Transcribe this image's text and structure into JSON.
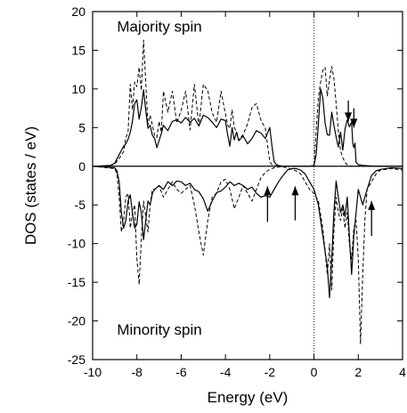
{
  "chart_data": {
    "type": "line",
    "xlabel": "Energy (eV)",
    "ylabel": "DOS (states / eV)",
    "xlim": [
      -10,
      4
    ],
    "ylim": [
      -25,
      20
    ],
    "xticks": [
      -10,
      -8,
      -6,
      -4,
      -2,
      0,
      2,
      4
    ],
    "yticks": [
      -25,
      -20,
      -15,
      -10,
      -5,
      0,
      5,
      10,
      15,
      20
    ],
    "grid": false,
    "legend": "none",
    "annotations": [
      {
        "text": "Majority spin",
        "x": -8.9,
        "y": 17.4
      },
      {
        "text": "Minority spin",
        "x": -8.9,
        "y": -21.8
      }
    ],
    "fermi_level": 0,
    "arrows": [
      {
        "direction": "down",
        "x": 1.55,
        "y_from": 8.5,
        "y_to": 5.8
      },
      {
        "direction": "down",
        "x": 1.8,
        "y_from": 7.5,
        "y_to": 5.0
      },
      {
        "direction": "up",
        "x": -2.1,
        "y_from": -7.2,
        "y_to": -2.6
      },
      {
        "direction": "up",
        "x": -0.85,
        "y_from": -7.0,
        "y_to": -2.6
      },
      {
        "direction": "up",
        "x": 2.6,
        "y_from": -9.0,
        "y_to": -4.5
      }
    ],
    "series": [
      {
        "style": "solid",
        "x": [
          -10,
          -9.2,
          -9.0,
          -8.8,
          -8.6,
          -8.5,
          -8.4,
          -8.3,
          -8.2,
          -8.1,
          -8.0,
          -7.9,
          -7.8,
          -7.7,
          -7.6,
          -7.5,
          -7.4,
          -7.3,
          -7.2,
          -7.1,
          -7.0,
          -6.9,
          -6.8,
          -6.6,
          -6.4,
          -6.2,
          -6.0,
          -5.8,
          -5.6,
          -5.4,
          -5.2,
          -5.0,
          -4.8,
          -4.6,
          -4.4,
          -4.2,
          -4.0,
          -3.9,
          -3.8,
          -3.7,
          -3.6,
          -3.5,
          -3.4,
          -3.2,
          -3.0,
          -2.8,
          -2.6,
          -2.4,
          -2.2,
          -2.0,
          -1.9,
          -1.8,
          -1.7,
          -1.6,
          -1.4,
          -1.2,
          -1.0,
          -0.8,
          -0.6,
          -0.4,
          -0.2,
          0.0,
          0.1,
          0.2,
          0.3,
          0.4,
          0.5,
          0.6,
          0.7,
          0.8,
          0.9,
          1.0,
          1.1,
          1.2,
          1.3,
          1.4,
          1.5,
          1.6,
          1.7,
          1.75,
          1.8,
          1.85,
          1.9,
          2.0,
          2.2,
          2.5,
          3.0,
          3.5,
          4.0
        ],
        "y": [
          0,
          0.1,
          0.4,
          1.5,
          2.6,
          2.9,
          3.5,
          4.4,
          5.8,
          8.1,
          8.6,
          6.1,
          7.6,
          9.9,
          7.2,
          4.9,
          5.3,
          4.0,
          3.6,
          2.4,
          3.3,
          4.2,
          5.3,
          4.6,
          5.8,
          6.0,
          5.6,
          6.3,
          5.7,
          6.2,
          5.2,
          6.6,
          6.3,
          5.7,
          5.0,
          6.1,
          5.9,
          4.1,
          2.6,
          5.0,
          3.4,
          4.4,
          3.3,
          3.9,
          2.9,
          3.6,
          4.6,
          4.3,
          3.6,
          5.0,
          2.7,
          0.6,
          0.2,
          0.1,
          0,
          0,
          0,
          0,
          0,
          0,
          0,
          0.1,
          1.6,
          5.5,
          10.0,
          8.8,
          5.6,
          4.1,
          4.0,
          7.0,
          5.3,
          3.8,
          2.5,
          4.4,
          2.1,
          4.8,
          6.0,
          5.1,
          5.7,
          3.0,
          2.4,
          3.0,
          0.5,
          0.2,
          0.1,
          0.05,
          0,
          0,
          0
        ]
      },
      {
        "style": "dashed",
        "x": [
          -10,
          -9.2,
          -9.0,
          -8.8,
          -8.6,
          -8.5,
          -8.4,
          -8.3,
          -8.2,
          -8.1,
          -8.0,
          -7.9,
          -7.8,
          -7.7,
          -7.6,
          -7.5,
          -7.4,
          -7.3,
          -7.2,
          -7.1,
          -7.0,
          -6.9,
          -6.8,
          -6.6,
          -6.4,
          -6.2,
          -6.0,
          -5.8,
          -5.6,
          -5.4,
          -5.2,
          -5.0,
          -4.8,
          -4.6,
          -4.4,
          -4.2,
          -4.0,
          -3.9,
          -3.8,
          -3.7,
          -3.6,
          -3.5,
          -3.4,
          -3.2,
          -3.0,
          -2.8,
          -2.6,
          -2.4,
          -2.2,
          -2.0,
          -1.9,
          -1.8,
          -1.7,
          -1.6,
          -1.4,
          -1.2,
          -1.0,
          -0.8,
          -0.6,
          -0.4,
          -0.2,
          0.0,
          0.1,
          0.2,
          0.3,
          0.4,
          0.5,
          0.6,
          0.7,
          0.8,
          0.9,
          1.0,
          1.1,
          1.2,
          1.3,
          1.4,
          1.5,
          1.6,
          1.7,
          1.75,
          1.8,
          1.85,
          1.9,
          2.0,
          2.2,
          2.5,
          3.0,
          3.5,
          4.0
        ],
        "y": [
          0,
          0.1,
          0.3,
          1.0,
          1.9,
          3.7,
          4.4,
          10.6,
          7.3,
          10.9,
          10.3,
          12.8,
          9.8,
          16.3,
          10.8,
          5.3,
          6.6,
          5.3,
          4.0,
          3.7,
          5.8,
          4.4,
          9.7,
          7.0,
          9.7,
          5.6,
          7.2,
          9.7,
          4.7,
          10.6,
          5.2,
          10.6,
          9.8,
          6.9,
          5.7,
          9.7,
          6.8,
          5.3,
          4.9,
          7.3,
          5.0,
          4.5,
          3.4,
          4.1,
          5.5,
          7.6,
          8.1,
          6.0,
          4.9,
          0.6,
          0.2,
          0.1,
          0,
          0,
          0,
          0,
          0,
          0,
          0,
          0,
          0,
          0.1,
          4.7,
          8.9,
          10.9,
          12.4,
          12.8,
          9.1,
          11.1,
          12.9,
          11.4,
          8.1,
          4.6,
          2.0,
          1.1,
          0.5,
          0.2,
          0.1,
          0,
          0,
          0,
          0,
          0,
          0,
          0,
          0,
          0,
          0,
          0
        ]
      },
      {
        "style": "solid",
        "x": [
          -10,
          -9.0,
          -8.9,
          -8.8,
          -8.7,
          -8.6,
          -8.5,
          -8.4,
          -8.3,
          -8.2,
          -8.1,
          -8.0,
          -7.9,
          -7.8,
          -7.7,
          -7.6,
          -7.5,
          -7.4,
          -7.3,
          -7.2,
          -7.0,
          -6.8,
          -6.6,
          -6.4,
          -6.2,
          -6.0,
          -5.8,
          -5.6,
          -5.4,
          -5.2,
          -5.0,
          -4.8,
          -4.6,
          -4.4,
          -4.2,
          -4.0,
          -3.8,
          -3.6,
          -3.4,
          -3.2,
          -3.0,
          -2.8,
          -2.6,
          -2.4,
          -2.2,
          -2.0,
          -1.8,
          -1.6,
          -1.4,
          -1.2,
          -1.0,
          -0.8,
          -0.6,
          -0.4,
          -0.2,
          0.0,
          0.2,
          0.4,
          0.6,
          0.7,
          0.8,
          0.9,
          1.0,
          1.1,
          1.2,
          1.3,
          1.4,
          1.5,
          1.6,
          1.7,
          1.8,
          1.9,
          2.0,
          2.1,
          2.2,
          2.3,
          2.4,
          2.6,
          2.8,
          3.0,
          3.5,
          4.0
        ],
        "y": [
          0,
          -0.2,
          -0.6,
          -2.0,
          -6.0,
          -8.0,
          -7.0,
          -4.5,
          -3.7,
          -6.0,
          -8.0,
          -7.5,
          -4.6,
          -6.0,
          -9.5,
          -7.0,
          -4.5,
          -5.0,
          -3.5,
          -3.0,
          -2.5,
          -3.0,
          -2.0,
          -2.5,
          -1.9,
          -2.0,
          -2.5,
          -2.2,
          -3.0,
          -3.3,
          -4.2,
          -5.8,
          -4.5,
          -3.4,
          -3.2,
          -2.7,
          -2.0,
          -2.5,
          -2.2,
          -2.5,
          -3.0,
          -2.7,
          -3.5,
          -4.0,
          -3.8,
          -4.0,
          -3.0,
          -2.0,
          -1.2,
          -0.5,
          -0.3,
          -0.3,
          -0.5,
          -1.0,
          -2.0,
          -3.0,
          -5.0,
          -9.0,
          -13.0,
          -17.0,
          -12.0,
          -6.0,
          -1.9,
          -4.0,
          -6.0,
          -5.0,
          -6.5,
          -4.0,
          -9.0,
          -14.0,
          -9.0,
          -6.0,
          -3.0,
          -4.0,
          -5.0,
          -4.0,
          -3.0,
          -1.2,
          -0.6,
          -0.4,
          -0.2,
          -0.3
        ]
      },
      {
        "style": "dashed",
        "x": [
          -10,
          -9.0,
          -8.9,
          -8.8,
          -8.7,
          -8.6,
          -8.5,
          -8.4,
          -8.3,
          -8.2,
          -8.1,
          -8.0,
          -7.9,
          -7.8,
          -7.7,
          -7.6,
          -7.5,
          -7.4,
          -7.3,
          -7.2,
          -7.0,
          -6.8,
          -6.6,
          -6.4,
          -6.2,
          -6.0,
          -5.8,
          -5.6,
          -5.4,
          -5.2,
          -5.0,
          -4.8,
          -4.6,
          -4.4,
          -4.2,
          -4.0,
          -3.8,
          -3.6,
          -3.4,
          -3.2,
          -3.0,
          -2.8,
          -2.6,
          -2.4,
          -2.2,
          -2.0,
          -1.8,
          -1.6,
          -1.4,
          -1.2,
          -1.0,
          -0.8,
          -0.6,
          -0.4,
          -0.2,
          0.0,
          0.2,
          0.4,
          0.6,
          0.7,
          0.8,
          0.9,
          1.0,
          1.1,
          1.2,
          1.3,
          1.4,
          1.5,
          1.6,
          1.7,
          1.8,
          1.9,
          2.0,
          2.1,
          2.2,
          2.3,
          2.4,
          2.6,
          2.8,
          3.0,
          3.5,
          4.0
        ],
        "y": [
          0,
          -0.3,
          -1.0,
          -4.0,
          -8.5,
          -7.0,
          -4.0,
          -3.5,
          -8.0,
          -6.0,
          -5.0,
          -12.0,
          -15.3,
          -9.5,
          -4.5,
          -6.5,
          -8.5,
          -5.0,
          -3.0,
          -3.0,
          -2.5,
          -4.0,
          -3.0,
          -2.0,
          -3.0,
          -3.5,
          -3.0,
          -2.5,
          -5.0,
          -8.5,
          -11.5,
          -7.0,
          -4.0,
          -3.5,
          -2.0,
          -1.7,
          -3.0,
          -5.5,
          -4.0,
          -2.5,
          -3.5,
          -4.5,
          -3.0,
          -1.5,
          -0.8,
          -0.4,
          -0.2,
          -0.1,
          -0.1,
          -0.2,
          -0.4,
          -0.6,
          -1.0,
          -2.0,
          -3.0,
          -3.5,
          -4.5,
          -8.0,
          -14.0,
          -10.0,
          -16.0,
          -8.5,
          -4.0,
          -6.0,
          -7.0,
          -5.5,
          -8.0,
          -6.0,
          -10.0,
          -12.0,
          -8.0,
          -7.0,
          -12.0,
          -23.0,
          -14.0,
          -7.0,
          -3.0,
          -2.0,
          -1.0,
          -0.5,
          -0.3,
          -0.5
        ]
      }
    ]
  }
}
